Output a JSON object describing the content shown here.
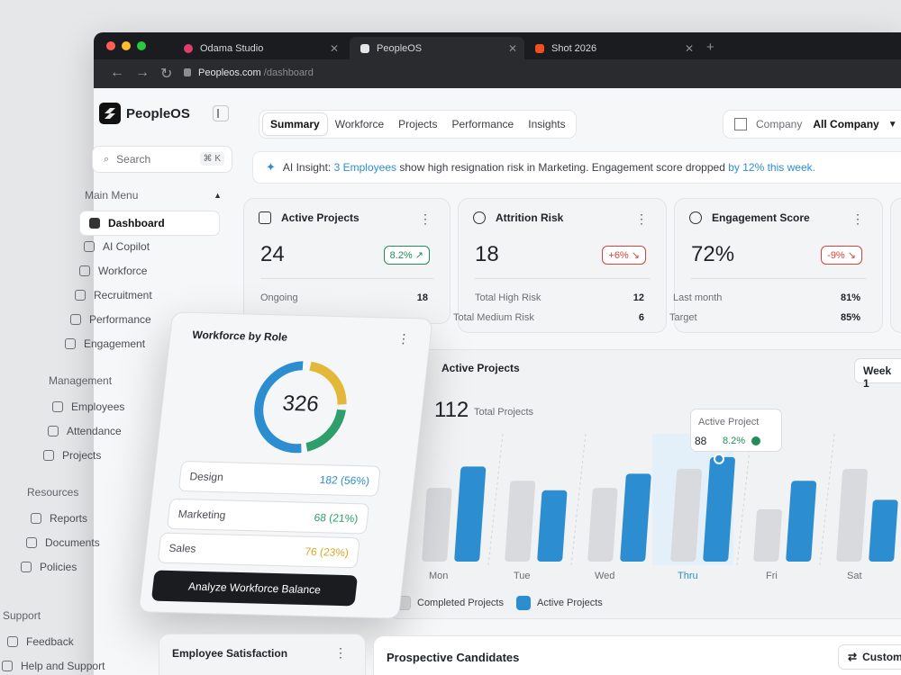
{
  "browser": {
    "tabs": [
      {
        "label": "Odama Studio",
        "color": "#e23c6c"
      },
      {
        "label": "PeopleOS",
        "color": "#e6e6e6"
      },
      {
        "label": "Shot 2026",
        "color": "#f24e1e"
      }
    ],
    "url_host": "Peopleos.com",
    "url_path": "/dashboard"
  },
  "sidebar": {
    "brand": "PeopleOS",
    "search_placeholder": "Search",
    "search_shortcut": "⌘ K",
    "main_menu_label": "Main Menu",
    "main_items": [
      "Dashboard",
      "AI Copilot",
      "Workforce",
      "Recruitment",
      "Performance",
      "Engagement"
    ],
    "management_label": "Management",
    "management_items": [
      "Employees",
      "Attendance",
      "Projects"
    ],
    "resources_label": "Resources",
    "resources_items": [
      "Reports",
      "Documents",
      "Policies"
    ],
    "support_label": "Support",
    "support_items": [
      "Feedback",
      "Help and Support"
    ]
  },
  "tabs": [
    "Summary",
    "Workforce",
    "Projects",
    "Performance",
    "Insights"
  ],
  "company": {
    "label": "Company",
    "value": "All Company"
  },
  "insight": {
    "prefix": "AI Insight:",
    "highlight1": "3 Employees",
    "middle": "show high resignation risk in Marketing. Engagement score dropped",
    "highlight2": "by 12% this week."
  },
  "cards": [
    {
      "title": "Active Projects",
      "value": "24",
      "badge": "8.2%",
      "trend": "up",
      "rows": [
        {
          "label": "Ongoing",
          "value": "18"
        }
      ]
    },
    {
      "title": "Attrition Risk",
      "value": "18",
      "badge": "+6%",
      "trend": "down",
      "rows": [
        {
          "label": "Total High Risk",
          "value": "12"
        },
        {
          "label": "Total Medium Risk",
          "value": "6"
        }
      ]
    },
    {
      "title": "Engagement Score",
      "value": "72%",
      "badge": "-9%",
      "trend": "down",
      "rows": [
        {
          "label": "Last month",
          "value": "81%"
        },
        {
          "label": "Target",
          "value": "85%"
        }
      ]
    }
  ],
  "workforce": {
    "title": "Workforce by Role",
    "total": "326",
    "roles": [
      {
        "name": "Design",
        "value": "182 (56%)",
        "color": "#2c8ed0"
      },
      {
        "name": "Marketing",
        "value": "68 (21%)",
        "color": "#2e9e6b"
      },
      {
        "name": "Sales",
        "value": "76 (23%)",
        "color": "#e3b83a"
      }
    ],
    "button": "Analyze Workforce Balance"
  },
  "projects_chart": {
    "title": "Active Projects",
    "range": "Week 1",
    "total": "112",
    "total_label": "Total Projects",
    "tooltip": {
      "label": "Active Project",
      "value": "88",
      "change": "8.2%"
    }
  },
  "chart_data": {
    "type": "bar",
    "categories": [
      "Mon",
      "Tue",
      "Wed",
      "Thru",
      "Fri",
      "Sat"
    ],
    "highlight": "Thru",
    "series": [
      {
        "name": "Completed Projects",
        "values": [
          62,
          68,
          62,
          78,
          44,
          78
        ],
        "color": "#d9dadd"
      },
      {
        "name": "Active Projects",
        "values": [
          80,
          60,
          74,
          88,
          68,
          52
        ],
        "color": "#2c8ed0"
      }
    ]
  },
  "bottom": {
    "satisfaction_title": "Employee Satisfaction",
    "candidates_title": "Prospective Candidates",
    "customize": "Customi"
  }
}
